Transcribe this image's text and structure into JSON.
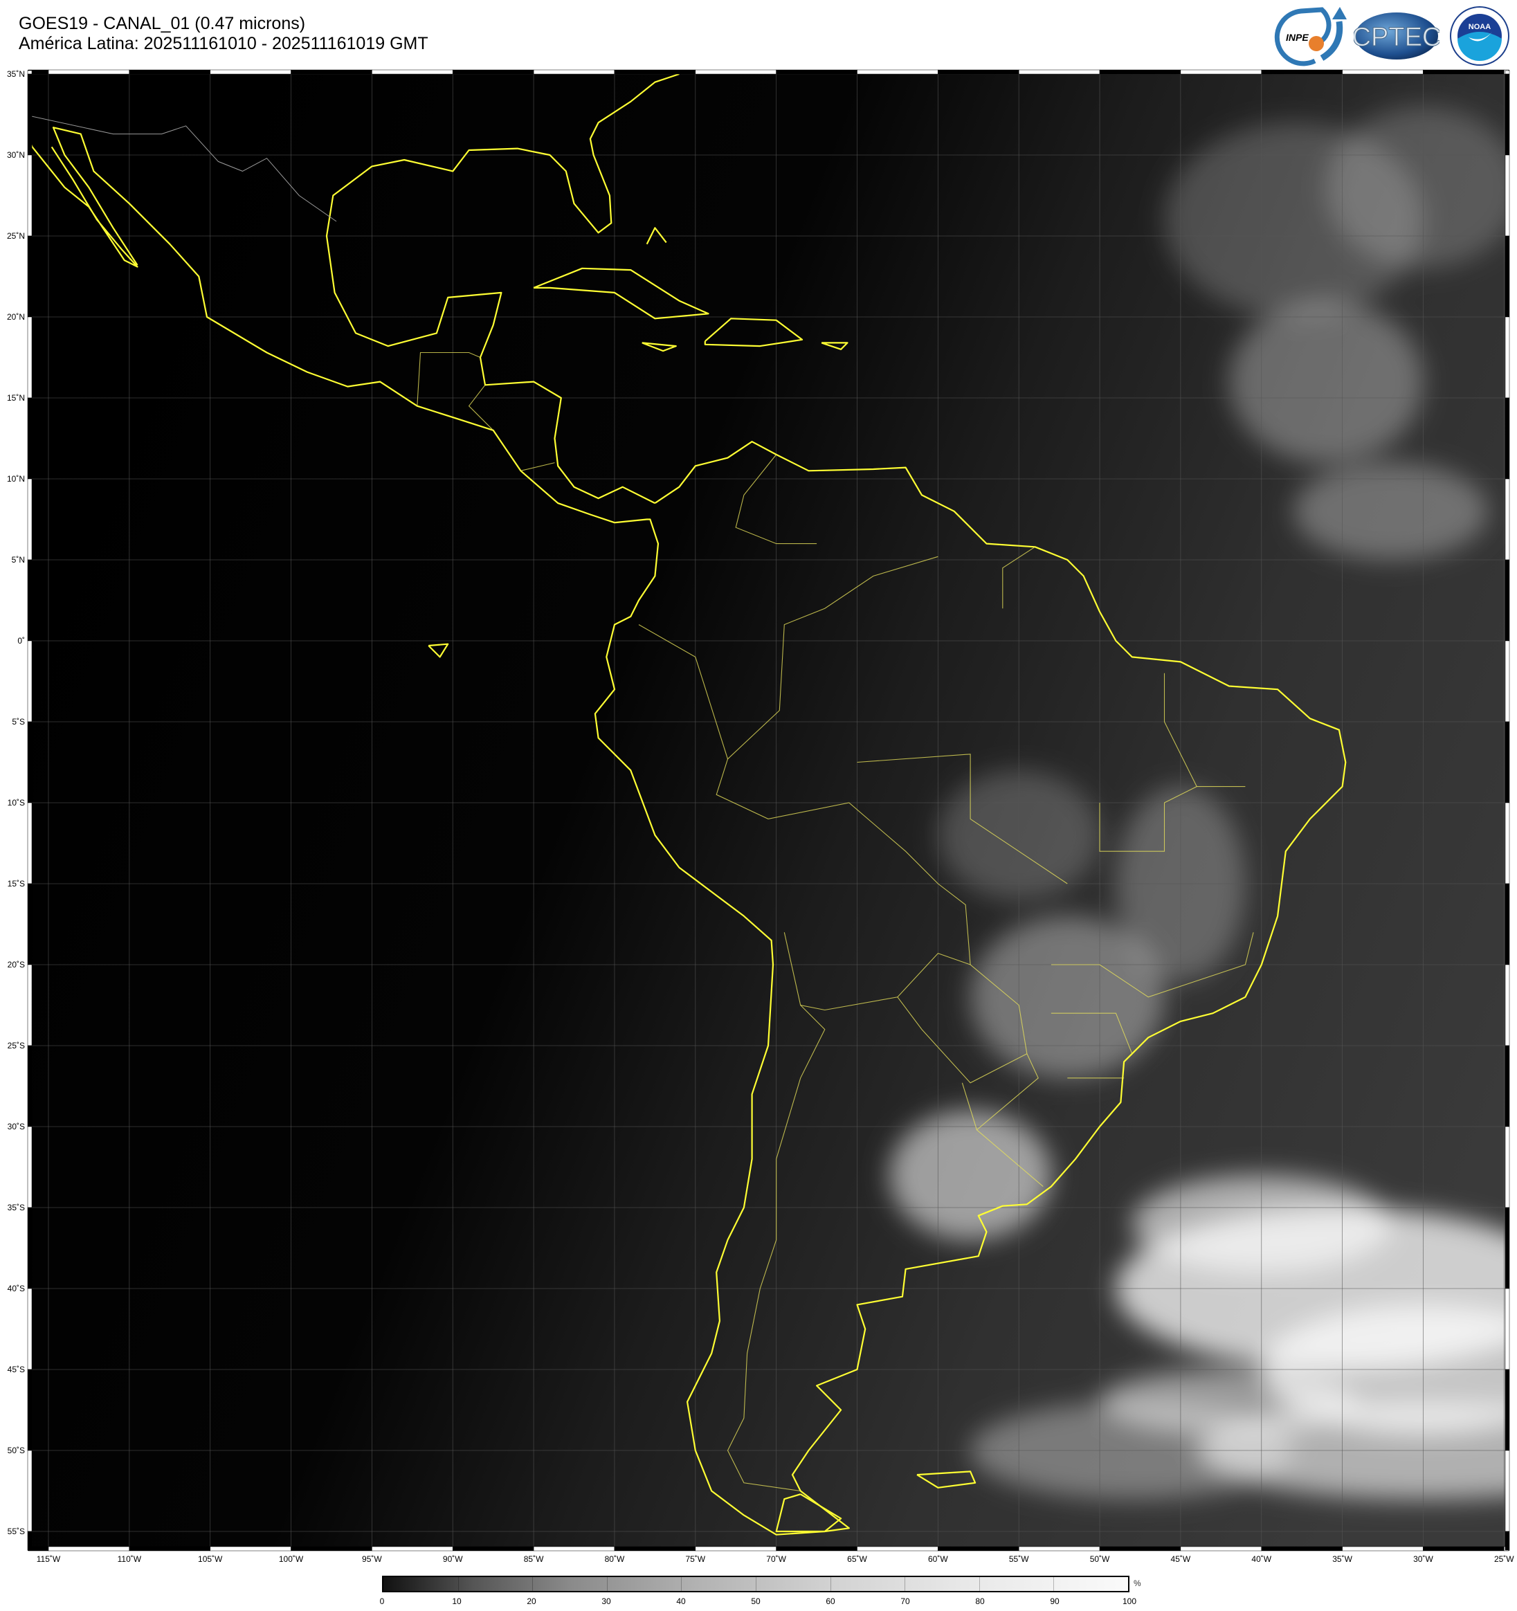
{
  "header": {
    "title": "GOES19 - CANAL_01 (0.47 microns)",
    "subtitle": "América Latina: 202511161010 - 202511161019 GMT"
  },
  "logos": {
    "inpe": "INPE",
    "cptec": "CPTEC",
    "noaa": "NOAA",
    "noaa_ring_top": "NATIONAL OCEANIC AND ATMOSPHERIC ADMINISTRATION",
    "noaa_ring_bottom": "U.S. DEPARTMENT OF COMMERCE"
  },
  "map": {
    "lat_labels": [
      "35˚N",
      "30˚N",
      "25˚N",
      "20˚N",
      "15˚N",
      "10˚N",
      "5˚N",
      "0˚",
      "5˚S",
      "10˚S",
      "15˚S",
      "20˚S",
      "25˚S",
      "30˚S",
      "35˚S",
      "40˚S",
      "45˚S",
      "50˚S",
      "55˚S"
    ],
    "lat_values": [
      35,
      30,
      25,
      20,
      15,
      10,
      5,
      0,
      -5,
      -10,
      -15,
      -20,
      -25,
      -30,
      -35,
      -40,
      -45,
      -50,
      -55
    ],
    "lon_labels": [
      "115˚W",
      "110˚W",
      "105˚W",
      "100˚W",
      "95˚W",
      "90˚W",
      "85˚W",
      "80˚W",
      "75˚W",
      "70˚W",
      "65˚W",
      "60˚W",
      "55˚W",
      "50˚W",
      "45˚W",
      "40˚W",
      "35˚W",
      "30˚W",
      "25˚W"
    ],
    "lon_values": [
      -115,
      -110,
      -105,
      -100,
      -95,
      -90,
      -85,
      -80,
      -75,
      -70,
      -65,
      -60,
      -55,
      -50,
      -45,
      -40,
      -35,
      -30,
      -25
    ],
    "coastline_color": "#ffff33",
    "border_color": "#e6e05a",
    "grid_color": "#555555"
  },
  "colorbar": {
    "ticks": [
      "0",
      "10",
      "20",
      "30",
      "40",
      "50",
      "60",
      "70",
      "80",
      "90",
      "100"
    ],
    "unit": "%",
    "colormap": "grayscale"
  }
}
